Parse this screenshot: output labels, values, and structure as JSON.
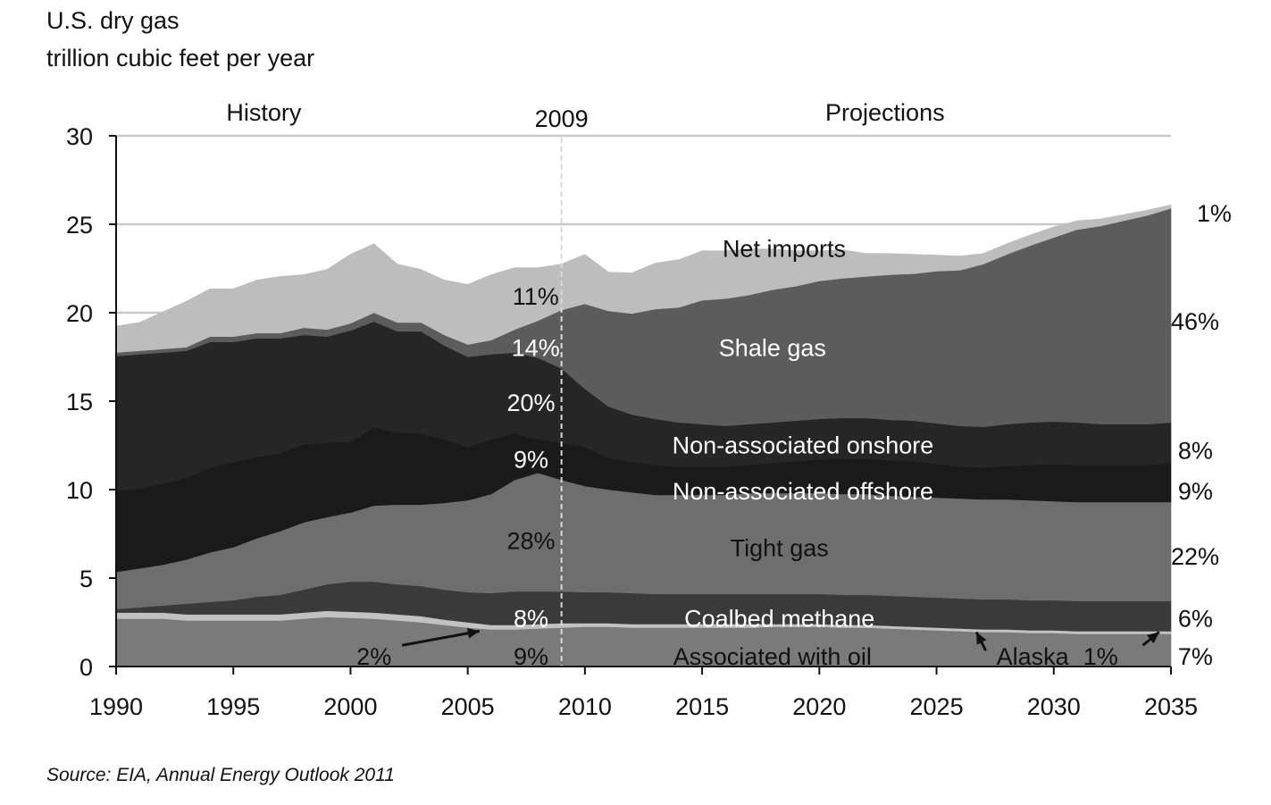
{
  "header": {
    "title": "U.S. dry gas",
    "units": "trillion cubic feet per year"
  },
  "source": "Source:  EIA, Annual Energy Outlook 2011",
  "chart_data": {
    "type": "area",
    "stacked": true,
    "title": "U.S. dry gas",
    "ylabel": "trillion cubic feet per year",
    "xlabel": "",
    "xlim": [
      1990,
      2035
    ],
    "ylim": [
      0,
      30
    ],
    "x_ticks": [
      1990,
      1995,
      2000,
      2005,
      2010,
      2015,
      2020,
      2025,
      2030,
      2035
    ],
    "y_ticks": [
      0,
      5,
      10,
      15,
      20,
      25,
      30
    ],
    "grid": "horizontal",
    "period_labels": {
      "history": "History",
      "divider": "2009",
      "projections": "Projections"
    },
    "divider_year": 2009,
    "x": [
      1990,
      1991,
      1992,
      1993,
      1994,
      1995,
      1996,
      1997,
      1998,
      1999,
      2000,
      2001,
      2002,
      2003,
      2004,
      2005,
      2006,
      2007,
      2008,
      2009,
      2010,
      2011,
      2012,
      2013,
      2014,
      2015,
      2016,
      2017,
      2018,
      2019,
      2020,
      2021,
      2022,
      2023,
      2024,
      2025,
      2026,
      2027,
      2028,
      2029,
      2030,
      2031,
      2032,
      2033,
      2034,
      2035
    ],
    "series": [
      {
        "name": "Associated with oil",
        "color": "#7a7a7a",
        "values": [
          2.7,
          2.7,
          2.7,
          2.6,
          2.6,
          2.6,
          2.6,
          2.6,
          2.7,
          2.8,
          2.75,
          2.7,
          2.6,
          2.5,
          2.35,
          2.2,
          2.1,
          2.1,
          2.15,
          2.2,
          2.25,
          2.25,
          2.2,
          2.2,
          2.2,
          2.2,
          2.2,
          2.2,
          2.25,
          2.25,
          2.25,
          2.2,
          2.2,
          2.15,
          2.1,
          2.05,
          2.0,
          1.95,
          1.95,
          1.9,
          1.9,
          1.85,
          1.85,
          1.85,
          1.85,
          1.85
        ]
      },
      {
        "name": "Alaska",
        "color": "#c2c2c2",
        "values": [
          0.35,
          0.35,
          0.35,
          0.35,
          0.35,
          0.35,
          0.35,
          0.35,
          0.35,
          0.35,
          0.35,
          0.35,
          0.35,
          0.35,
          0.3,
          0.3,
          0.25,
          0.25,
          0.25,
          0.25,
          0.2,
          0.2,
          0.2,
          0.2,
          0.2,
          0.2,
          0.2,
          0.2,
          0.15,
          0.15,
          0.15,
          0.15,
          0.15,
          0.15,
          0.15,
          0.15,
          0.15,
          0.15,
          0.15,
          0.15,
          0.15,
          0.15,
          0.15,
          0.15,
          0.15,
          0.15
        ]
      },
      {
        "name": "Coalbed methane",
        "color": "#3a3a3a",
        "values": [
          0.2,
          0.3,
          0.4,
          0.6,
          0.7,
          0.8,
          1.0,
          1.1,
          1.3,
          1.5,
          1.7,
          1.75,
          1.7,
          1.7,
          1.7,
          1.7,
          1.8,
          1.9,
          1.85,
          1.8,
          1.75,
          1.75,
          1.75,
          1.7,
          1.7,
          1.7,
          1.7,
          1.7,
          1.7,
          1.7,
          1.7,
          1.7,
          1.7,
          1.7,
          1.7,
          1.7,
          1.7,
          1.7,
          1.7,
          1.7,
          1.7,
          1.7,
          1.7,
          1.7,
          1.7,
          1.7
        ]
      },
      {
        "name": "Tight gas",
        "color": "#6e6e6e",
        "values": [
          2.1,
          2.2,
          2.3,
          2.5,
          2.8,
          3.0,
          3.3,
          3.6,
          3.8,
          3.8,
          3.9,
          4.3,
          4.5,
          4.6,
          4.9,
          5.2,
          5.6,
          6.3,
          6.7,
          6.3,
          6.0,
          5.8,
          5.7,
          5.6,
          5.6,
          5.6,
          5.6,
          5.7,
          5.7,
          5.7,
          5.7,
          5.7,
          5.7,
          5.65,
          5.65,
          5.65,
          5.65,
          5.65,
          5.65,
          5.65,
          5.6,
          5.6,
          5.6,
          5.6,
          5.6,
          5.6
        ]
      },
      {
        "name": "Non-associated offshore",
        "color": "#1a1a1a",
        "values": [
          4.6,
          4.5,
          4.6,
          4.6,
          4.8,
          4.8,
          4.6,
          4.4,
          4.4,
          4.2,
          4.0,
          4.4,
          4.1,
          4.0,
          3.6,
          3.0,
          3.1,
          2.6,
          1.9,
          2.1,
          2.2,
          1.8,
          1.7,
          1.7,
          1.6,
          1.6,
          1.6,
          1.6,
          1.7,
          1.8,
          1.9,
          2.0,
          2.0,
          2.0,
          2.0,
          1.9,
          1.8,
          1.8,
          1.9,
          2.0,
          2.1,
          2.1,
          2.1,
          2.1,
          2.1,
          2.2
        ]
      },
      {
        "name": "Non-associated onshore",
        "color": "#262626",
        "values": [
          7.6,
          7.6,
          7.4,
          7.2,
          7.1,
          6.8,
          6.7,
          6.5,
          6.2,
          6.0,
          6.3,
          6.0,
          5.7,
          5.8,
          5.3,
          5.1,
          4.8,
          4.6,
          4.6,
          4.2,
          3.3,
          2.9,
          2.7,
          2.6,
          2.5,
          2.4,
          2.3,
          2.3,
          2.3,
          2.3,
          2.3,
          2.3,
          2.3,
          2.3,
          2.3,
          2.3,
          2.3,
          2.3,
          2.35,
          2.4,
          2.4,
          2.4,
          2.3,
          2.3,
          2.3,
          2.3
        ]
      },
      {
        "name": "Shale gas",
        "color": "#5c5c5c",
        "values": [
          0.2,
          0.2,
          0.2,
          0.2,
          0.3,
          0.3,
          0.3,
          0.3,
          0.4,
          0.4,
          0.4,
          0.5,
          0.5,
          0.5,
          0.6,
          0.7,
          0.8,
          1.3,
          2.1,
          3.3,
          4.8,
          5.4,
          5.7,
          6.2,
          6.5,
          7.0,
          7.2,
          7.3,
          7.5,
          7.6,
          7.8,
          7.9,
          8.0,
          8.2,
          8.3,
          8.6,
          8.8,
          9.2,
          9.6,
          10.0,
          10.4,
          10.9,
          11.2,
          11.5,
          11.8,
          12.1
        ]
      },
      {
        "name": "Net imports",
        "color": "#bdbdbd",
        "values": [
          1.5,
          1.6,
          2.1,
          2.6,
          2.7,
          2.7,
          3.0,
          3.2,
          3.0,
          3.4,
          3.9,
          3.9,
          3.3,
          3.0,
          3.1,
          3.4,
          3.7,
          3.5,
          3.0,
          2.6,
          2.8,
          2.2,
          2.3,
          2.6,
          2.7,
          2.8,
          2.7,
          2.6,
          2.3,
          2.0,
          1.7,
          1.6,
          1.3,
          1.2,
          1.1,
          0.9,
          0.8,
          0.6,
          0.6,
          0.6,
          0.6,
          0.5,
          0.4,
          0.35,
          0.3,
          0.2
        ]
      }
    ],
    "annotations": [
      {
        "text": "Net imports",
        "x": 2018.5,
        "y": 23.6,
        "color": "#111111",
        "size": 27,
        "anchor": "middle"
      },
      {
        "text": "Shale gas",
        "x": 2018.0,
        "y": 18.0,
        "color": "#ffffff",
        "size": 27,
        "anchor": "middle"
      },
      {
        "text": "Non-associated onshore",
        "x": 2019.3,
        "y": 12.5,
        "color": "#ffffff",
        "size": 27,
        "anchor": "middle"
      },
      {
        "text": "Non-associated offshore",
        "x": 2019.3,
        "y": 9.9,
        "color": "#ffffff",
        "size": 27,
        "anchor": "middle"
      },
      {
        "text": "Tight gas",
        "x": 2018.3,
        "y": 6.7,
        "color": "#111111",
        "size": 27,
        "anchor": "middle"
      },
      {
        "text": "Coalbed methane",
        "x": 2018.3,
        "y": 2.7,
        "color": "#ffffff",
        "size": 27,
        "anchor": "middle"
      },
      {
        "text": "Associated with oil",
        "x": 2018.0,
        "y": 0.55,
        "color": "#111111",
        "size": 27,
        "anchor": "middle"
      },
      {
        "text": "Alaska",
        "x": 2029.1,
        "y": 0.55,
        "color": "#111111",
        "size": 27,
        "anchor": "middle"
      },
      {
        "text": "1%",
        "x": 2032.0,
        "y": 0.55,
        "color": "#111111",
        "size": 27,
        "anchor": "middle"
      },
      {
        "text": "11%",
        "x": 2007.9,
        "y": 20.9,
        "color": "#111111",
        "size": 27,
        "anchor": "middle"
      },
      {
        "text": "14%",
        "x": 2007.9,
        "y": 18.0,
        "color": "#ffffff",
        "size": 27,
        "anchor": "middle"
      },
      {
        "text": "20%",
        "x": 2007.7,
        "y": 14.9,
        "color": "#ffffff",
        "size": 27,
        "anchor": "middle"
      },
      {
        "text": "9%",
        "x": 2007.7,
        "y": 11.7,
        "color": "#ffffff",
        "size": 27,
        "anchor": "middle"
      },
      {
        "text": "28%",
        "x": 2007.7,
        "y": 7.1,
        "color": "#111111",
        "size": 27,
        "anchor": "middle"
      },
      {
        "text": "8%",
        "x": 2007.7,
        "y": 2.7,
        "color": "#ffffff",
        "size": 27,
        "anchor": "middle"
      },
      {
        "text": "9%",
        "x": 2007.7,
        "y": 0.55,
        "color": "#111111",
        "size": 27,
        "anchor": "middle"
      },
      {
        "text": "2%",
        "x": 2001.0,
        "y": 0.55,
        "color": "#111111",
        "size": 27,
        "anchor": "middle"
      },
      {
        "text": "1%",
        "x": 2036.1,
        "y": 25.6,
        "color": "#111111",
        "size": 27,
        "anchor": "start"
      },
      {
        "text": "46%",
        "x": 2035.0,
        "y": 19.5,
        "color": "#111111",
        "size": 27,
        "anchor": "start"
      },
      {
        "text": "8%",
        "x": 2035.3,
        "y": 12.2,
        "color": "#111111",
        "size": 27,
        "anchor": "start"
      },
      {
        "text": "9%",
        "x": 2035.3,
        "y": 9.9,
        "color": "#111111",
        "size": 27,
        "anchor": "start"
      },
      {
        "text": "22%",
        "x": 2035.0,
        "y": 6.2,
        "color": "#111111",
        "size": 27,
        "anchor": "start"
      },
      {
        "text": "6%",
        "x": 2035.3,
        "y": 2.7,
        "color": "#111111",
        "size": 27,
        "anchor": "start"
      },
      {
        "text": "7%",
        "x": 2035.3,
        "y": 0.55,
        "color": "#111111",
        "size": 27,
        "anchor": "start"
      }
    ],
    "arrows": [
      {
        "from": [
          2002.2,
          1.2
        ],
        "to": [
          2005.5,
          2.0
        ]
      },
      {
        "from": [
          2027.1,
          0.9
        ],
        "to": [
          2026.7,
          1.95
        ]
      },
      {
        "from": [
          2033.8,
          1.2
        ],
        "to": [
          2034.5,
          1.95
        ]
      }
    ]
  }
}
